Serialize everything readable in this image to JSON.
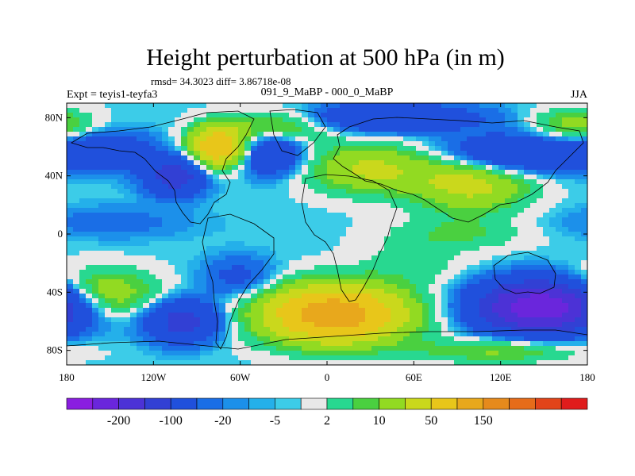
{
  "title": "Height perturbation at 500 hPa (in m)",
  "stats": "rmsd= 34.3023 diff= 3.86718e-08",
  "left_label": "Expt = teyis1-teyfa3",
  "center_label": "091_9_MaBP - 000_0_MaBP",
  "right_label": "JJA",
  "lat_ticks": [
    {
      "label": "80N",
      "value": 80
    },
    {
      "label": "40N",
      "value": 40
    },
    {
      "label": "0",
      "value": 0
    },
    {
      "label": "40S",
      "value": -40
    },
    {
      "label": "80S",
      "value": -80
    }
  ],
  "lon_ticks": [
    {
      "label": "180",
      "value": -180
    },
    {
      "label": "120W",
      "value": -120
    },
    {
      "label": "60W",
      "value": -60
    },
    {
      "label": "0",
      "value": 0
    },
    {
      "label": "60E",
      "value": 60
    },
    {
      "label": "120E",
      "value": 120
    },
    {
      "label": "180",
      "value": 180
    }
  ],
  "colorbar": {
    "colors": [
      "#8a1ee0",
      "#6a26dc",
      "#4c32d6",
      "#3240d4",
      "#2050dc",
      "#1a6ee6",
      "#1c90ea",
      "#24b0ea",
      "#3ccce8",
      "#e8e8e8",
      "#28d890",
      "#4ad040",
      "#92da22",
      "#cad81c",
      "#e8c61a",
      "#e8a81c",
      "#e68a1c",
      "#e66c1a",
      "#e2441a",
      "#e01c1c"
    ],
    "labels": [
      {
        "text": "-200",
        "index": 1
      },
      {
        "text": "-100",
        "index": 3
      },
      {
        "text": "-20",
        "index": 5
      },
      {
        "text": "-5",
        "index": 7
      },
      {
        "text": "2",
        "index": 9
      },
      {
        "text": "10",
        "index": 11
      },
      {
        "text": "50",
        "index": 13
      },
      {
        "text": "150",
        "index": 15
      }
    ]
  },
  "field_centers": [
    {
      "lon": -75,
      "lat": 60,
      "amp": 120,
      "sx": 14,
      "sy": 10
    },
    {
      "lon": -105,
      "lat": 40,
      "amp": -90,
      "sx": 14,
      "sy": 9
    },
    {
      "lon": -150,
      "lat": 57,
      "amp": -45,
      "sx": 22,
      "sy": 9
    },
    {
      "lon": -40,
      "lat": 55,
      "amp": -60,
      "sx": 16,
      "sy": 10
    },
    {
      "lon": -30,
      "lat": 75,
      "amp": 45,
      "sx": 25,
      "sy": 8
    },
    {
      "lon": 40,
      "lat": 80,
      "amp": -60,
      "sx": 45,
      "sy": 7
    },
    {
      "lon": 30,
      "lat": 45,
      "amp": 55,
      "sx": 30,
      "sy": 12
    },
    {
      "lon": 100,
      "lat": 35,
      "amp": 60,
      "sx": 28,
      "sy": 14
    },
    {
      "lon": 130,
      "lat": 55,
      "amp": -70,
      "sx": 35,
      "sy": 9
    },
    {
      "lon": 170,
      "lat": 75,
      "amp": 40,
      "sx": 20,
      "sy": 8
    },
    {
      "lon": -150,
      "lat": 8,
      "amp": -15,
      "sx": 40,
      "sy": 8
    },
    {
      "lon": 90,
      "lat": 0,
      "amp": 20,
      "sx": 35,
      "sy": 8
    },
    {
      "lon": -160,
      "lat": -42,
      "amp": 60,
      "sx": 28,
      "sy": 12
    },
    {
      "lon": -100,
      "lat": -60,
      "amp": -80,
      "sx": 18,
      "sy": 10
    },
    {
      "lon": 5,
      "lat": -55,
      "amp": 150,
      "sx": 35,
      "sy": 14
    },
    {
      "lon": 150,
      "lat": -50,
      "amp": -200,
      "sx": 30,
      "sy": 12
    },
    {
      "lon": -60,
      "lat": -30,
      "amp": -30,
      "sx": 18,
      "sy": 10
    },
    {
      "lon": 60,
      "lat": -20,
      "amp": 15,
      "sx": 25,
      "sy": 10
    },
    {
      "lon": 120,
      "lat": -80,
      "amp": 35,
      "sx": 40,
      "sy": 6
    }
  ]
}
